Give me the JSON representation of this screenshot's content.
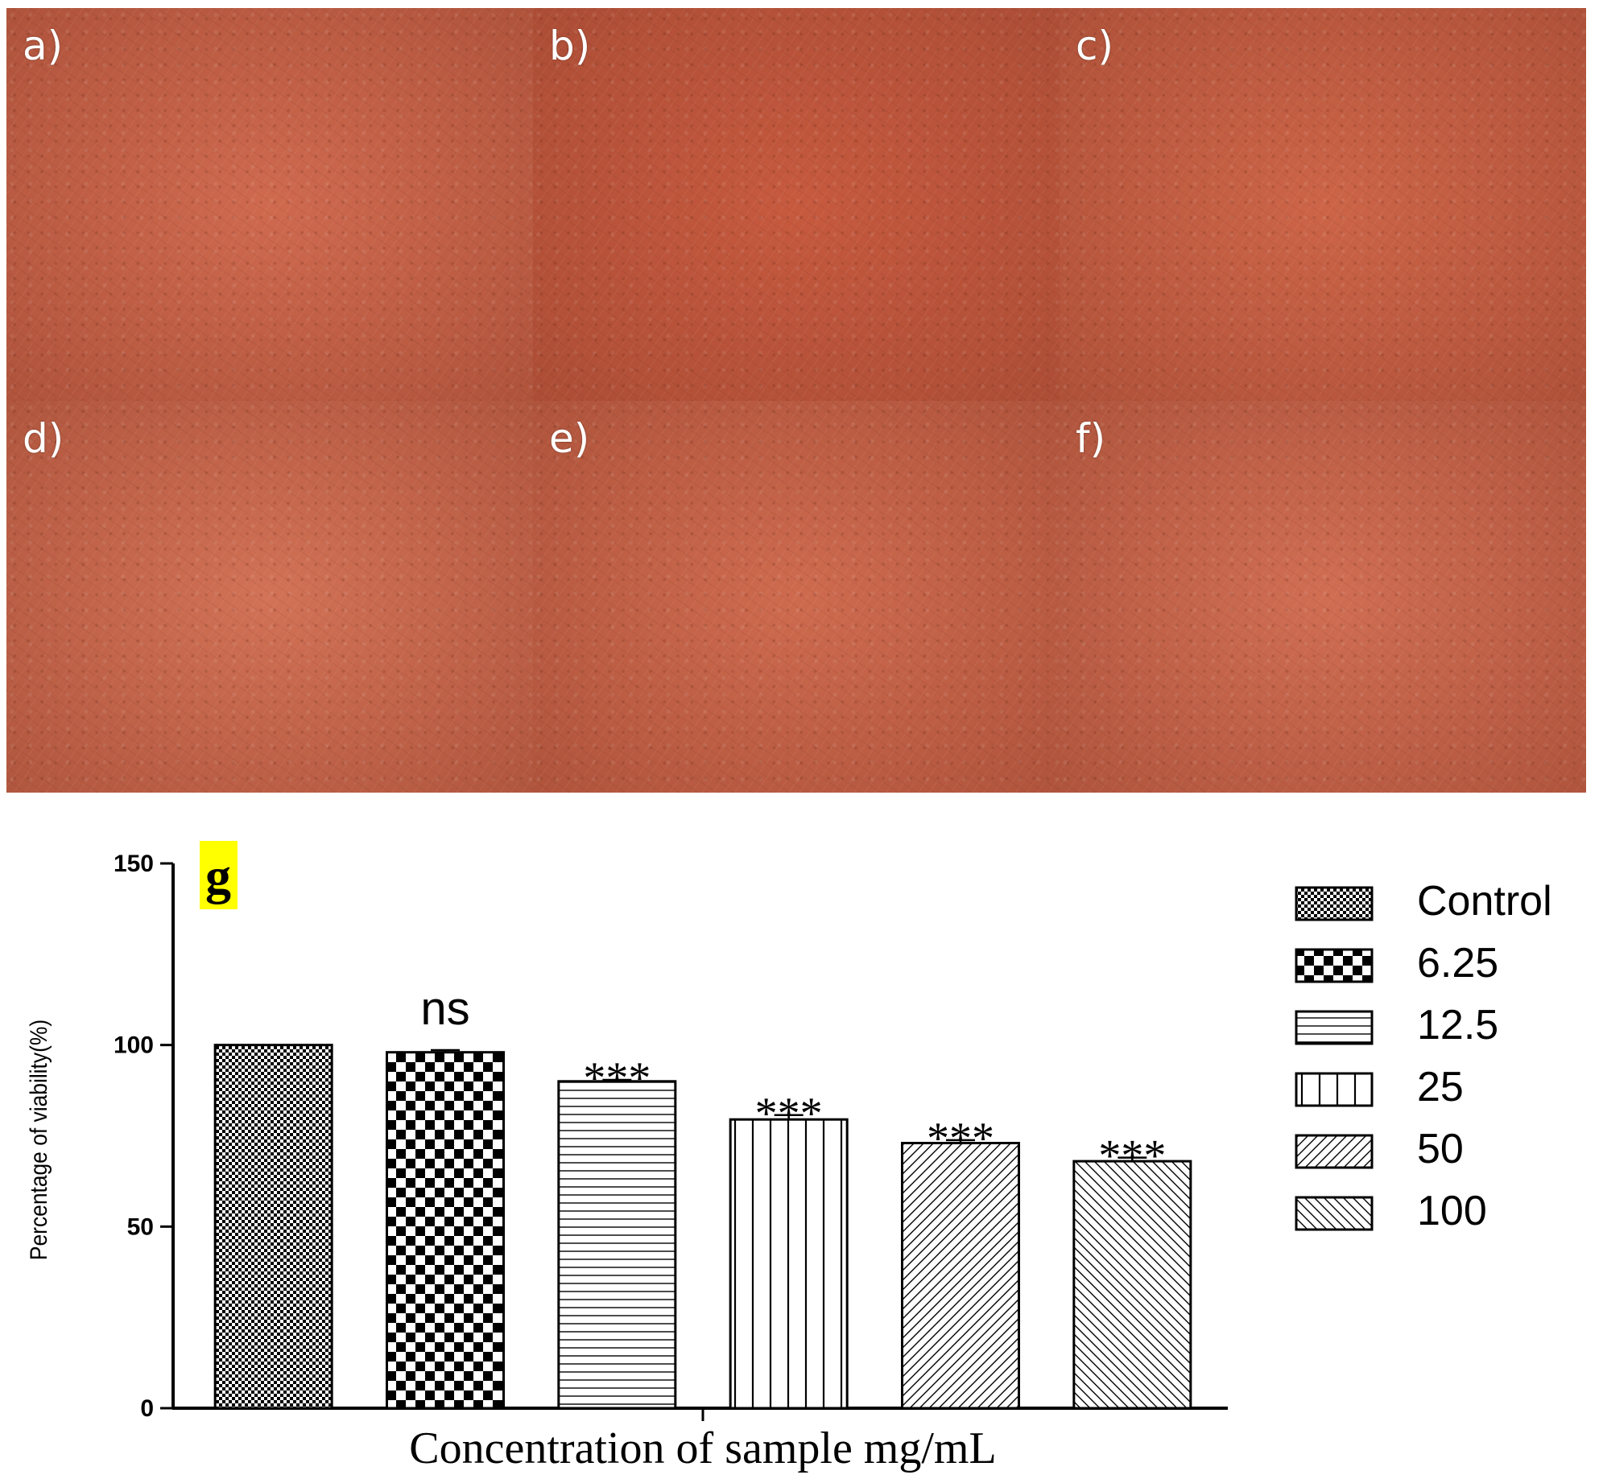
{
  "panels": [
    {
      "label": "a)"
    },
    {
      "label": "b)"
    },
    {
      "label": "c)"
    },
    {
      "label": "d)"
    },
    {
      "label": "e)"
    },
    {
      "label": "f)"
    }
  ],
  "colors": {
    "micrograph_base": "#d16a4e",
    "micrograph_dark": "#9c4530",
    "bar_ink": "#000000",
    "g_highlight": "#ffff00"
  },
  "chart_data": {
    "type": "bar",
    "panel_letter": "g",
    "categories": [
      "Control",
      "6.25",
      "12.5",
      "25",
      "50",
      "100"
    ],
    "values": [
      100,
      98,
      90,
      79.5,
      73,
      68
    ],
    "errors": [
      0,
      0.6,
      0.4,
      1.2,
      0.8,
      1.0
    ],
    "significance": [
      "",
      "ns",
      "***",
      "***",
      "***",
      "***"
    ],
    "patterns": [
      "fine-check",
      "coarse-check",
      "horizontal-lines",
      "vertical-lines",
      "diagonal-up",
      "diagonal-down"
    ],
    "xlabel": "Concentration of sample mg/mL",
    "ylabel": "Percentage of viability(%)",
    "ylim": [
      0,
      150
    ],
    "yticks": [
      "0",
      "50",
      "100",
      "150"
    ],
    "legend_position": "right",
    "grid": false
  }
}
